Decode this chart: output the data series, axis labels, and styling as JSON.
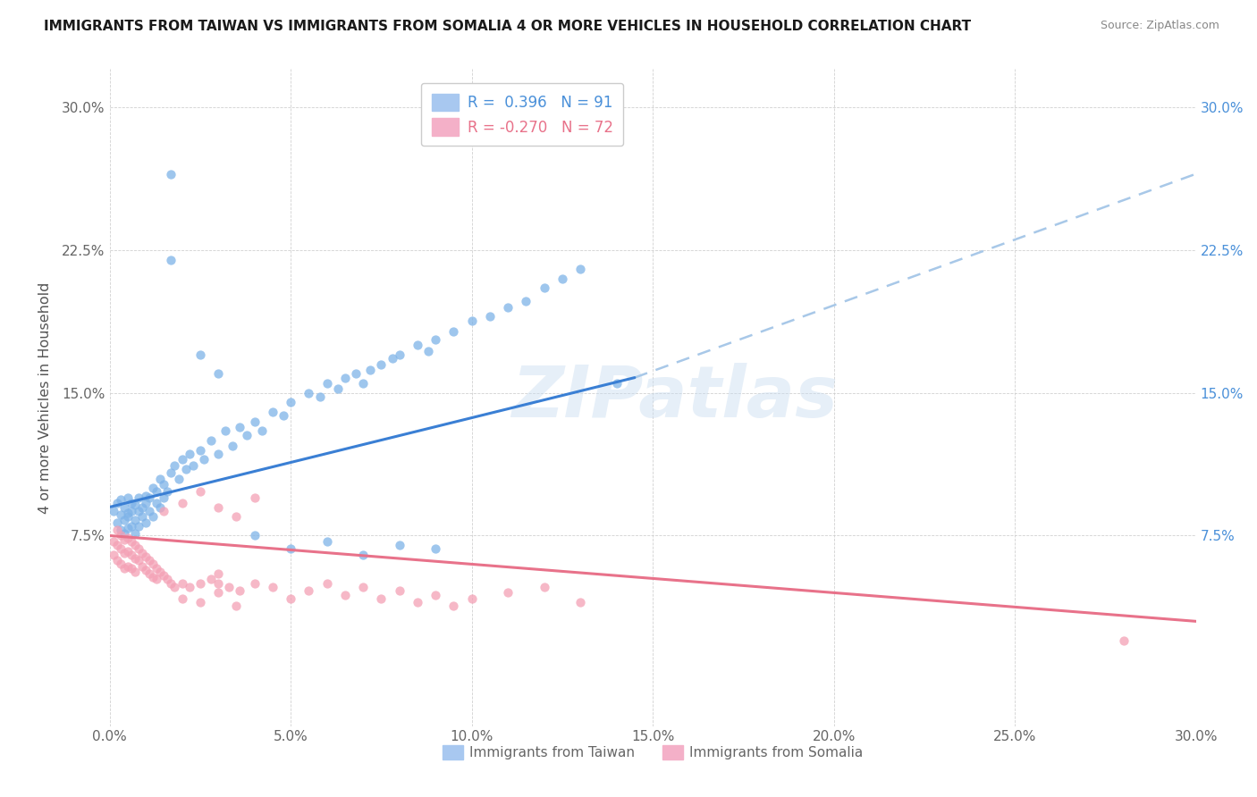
{
  "title": "IMMIGRANTS FROM TAIWAN VS IMMIGRANTS FROM SOMALIA 4 OR MORE VEHICLES IN HOUSEHOLD CORRELATION CHART",
  "source": "Source: ZipAtlas.com",
  "ylabel": "4 or more Vehicles in Household",
  "xlim": [
    0.0,
    0.3
  ],
  "ylim": [
    -0.025,
    0.32
  ],
  "taiwan_R": 0.396,
  "taiwan_N": 91,
  "somalia_R": -0.27,
  "somalia_N": 72,
  "taiwan_color": "#7EB3E8",
  "somalia_color": "#F4A0B5",
  "taiwan_line_color": "#3A7FD4",
  "somalia_line_color": "#E8728A",
  "watermark_text": "ZIPatlas",
  "legend_taiwan_label": "R =  0.396   N = 91",
  "legend_somalia_label": "R = -0.270   N = 72",
  "bottom_legend_taiwan": "Immigrants from Taiwan",
  "bottom_legend_somalia": "Immigrants from Somalia",
  "taiwan_x": [
    0.001,
    0.002,
    0.002,
    0.003,
    0.003,
    0.003,
    0.004,
    0.004,
    0.004,
    0.005,
    0.005,
    0.005,
    0.005,
    0.006,
    0.006,
    0.006,
    0.007,
    0.007,
    0.007,
    0.008,
    0.008,
    0.008,
    0.009,
    0.009,
    0.01,
    0.01,
    0.01,
    0.011,
    0.011,
    0.012,
    0.012,
    0.013,
    0.013,
    0.014,
    0.014,
    0.015,
    0.015,
    0.016,
    0.017,
    0.018,
    0.019,
    0.02,
    0.021,
    0.022,
    0.023,
    0.025,
    0.026,
    0.028,
    0.03,
    0.032,
    0.034,
    0.036,
    0.038,
    0.04,
    0.042,
    0.045,
    0.048,
    0.05,
    0.055,
    0.058,
    0.06,
    0.063,
    0.065,
    0.068,
    0.07,
    0.072,
    0.075,
    0.078,
    0.08,
    0.085,
    0.088,
    0.09,
    0.095,
    0.1,
    0.105,
    0.11,
    0.115,
    0.12,
    0.125,
    0.13,
    0.017,
    0.017,
    0.025,
    0.03,
    0.04,
    0.05,
    0.06,
    0.07,
    0.08,
    0.09,
    0.14
  ],
  "taiwan_y": [
    0.088,
    0.082,
    0.092,
    0.086,
    0.078,
    0.094,
    0.083,
    0.09,
    0.076,
    0.087,
    0.095,
    0.079,
    0.085,
    0.092,
    0.08,
    0.088,
    0.083,
    0.091,
    0.076,
    0.088,
    0.095,
    0.08,
    0.09,
    0.085,
    0.092,
    0.082,
    0.096,
    0.088,
    0.095,
    0.085,
    0.1,
    0.092,
    0.098,
    0.09,
    0.105,
    0.095,
    0.102,
    0.098,
    0.108,
    0.112,
    0.105,
    0.115,
    0.11,
    0.118,
    0.112,
    0.12,
    0.115,
    0.125,
    0.118,
    0.13,
    0.122,
    0.132,
    0.128,
    0.135,
    0.13,
    0.14,
    0.138,
    0.145,
    0.15,
    0.148,
    0.155,
    0.152,
    0.158,
    0.16,
    0.155,
    0.162,
    0.165,
    0.168,
    0.17,
    0.175,
    0.172,
    0.178,
    0.182,
    0.188,
    0.19,
    0.195,
    0.198,
    0.205,
    0.21,
    0.215,
    0.265,
    0.22,
    0.17,
    0.16,
    0.075,
    0.068,
    0.072,
    0.065,
    0.07,
    0.068,
    0.155
  ],
  "somalia_x": [
    0.001,
    0.001,
    0.002,
    0.002,
    0.002,
    0.003,
    0.003,
    0.003,
    0.004,
    0.004,
    0.004,
    0.005,
    0.005,
    0.005,
    0.006,
    0.006,
    0.006,
    0.007,
    0.007,
    0.007,
    0.008,
    0.008,
    0.009,
    0.009,
    0.01,
    0.01,
    0.011,
    0.011,
    0.012,
    0.012,
    0.013,
    0.013,
    0.014,
    0.015,
    0.016,
    0.017,
    0.018,
    0.02,
    0.022,
    0.025,
    0.028,
    0.03,
    0.033,
    0.036,
    0.04,
    0.045,
    0.05,
    0.055,
    0.06,
    0.065,
    0.07,
    0.075,
    0.08,
    0.085,
    0.09,
    0.095,
    0.1,
    0.11,
    0.12,
    0.13,
    0.015,
    0.02,
    0.025,
    0.03,
    0.035,
    0.04,
    0.02,
    0.025,
    0.03,
    0.035,
    0.28,
    0.03
  ],
  "somalia_y": [
    0.072,
    0.065,
    0.078,
    0.07,
    0.062,
    0.075,
    0.068,
    0.06,
    0.073,
    0.066,
    0.058,
    0.074,
    0.067,
    0.059,
    0.072,
    0.065,
    0.058,
    0.07,
    0.063,
    0.056,
    0.068,
    0.062,
    0.066,
    0.059,
    0.064,
    0.057,
    0.062,
    0.055,
    0.06,
    0.053,
    0.058,
    0.052,
    0.056,
    0.054,
    0.052,
    0.05,
    0.048,
    0.05,
    0.048,
    0.05,
    0.052,
    0.055,
    0.048,
    0.046,
    0.05,
    0.048,
    0.042,
    0.046,
    0.05,
    0.044,
    0.048,
    0.042,
    0.046,
    0.04,
    0.044,
    0.038,
    0.042,
    0.045,
    0.048,
    0.04,
    0.088,
    0.092,
    0.098,
    0.09,
    0.085,
    0.095,
    0.042,
    0.04,
    0.045,
    0.038,
    0.02,
    0.05
  ],
  "tw_line_x0": 0.0,
  "tw_line_x_solid_end": 0.145,
  "tw_line_x_dash_end": 0.3,
  "tw_line_y0": 0.09,
  "tw_line_y_solid_end": 0.158,
  "tw_line_y_dash_end": 0.265,
  "so_line_x0": 0.0,
  "so_line_x_end": 0.3,
  "so_line_y0": 0.075,
  "so_line_y_end": 0.03
}
